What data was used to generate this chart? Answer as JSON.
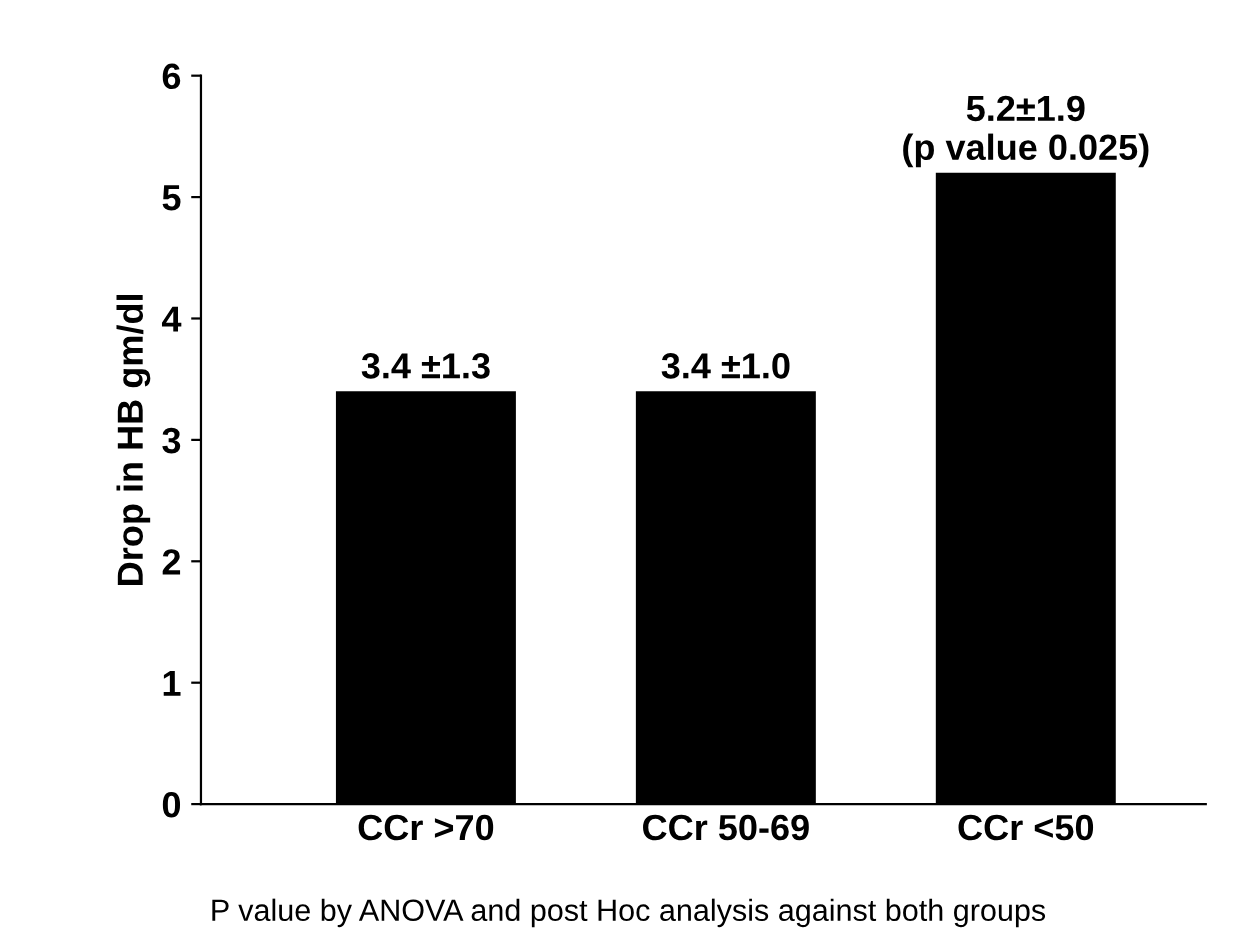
{
  "chart_data": {
    "type": "bar",
    "categories": [
      "CCr >70",
      "CCr 50-69",
      "CCr <50"
    ],
    "values": [
      3.4,
      3.4,
      5.2
    ],
    "color": "#000000",
    "value_labels": [
      "3.4 ±1.3",
      "3.4 ±1.0",
      "5.2±1.9\n(p value 0.025)"
    ],
    "ylabel": "Drop in HB gm/dl",
    "ylim": [
      0,
      6
    ],
    "yticks": [
      0,
      1,
      2,
      3,
      4,
      5,
      6
    ],
    "grid": false,
    "annotations": [
      "P value by ANOVA and post Hoc analysis against both groups"
    ]
  }
}
